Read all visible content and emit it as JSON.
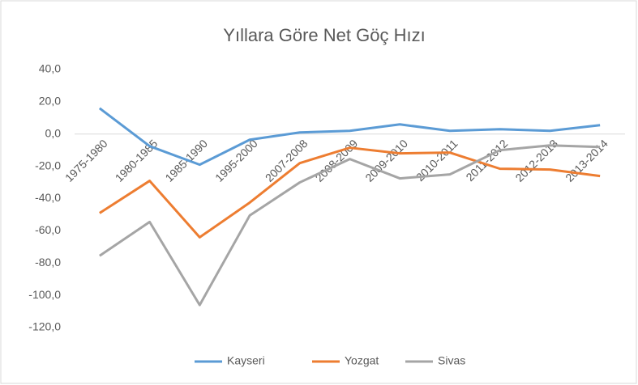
{
  "chart_data": {
    "type": "line",
    "title": "Yıllara Göre Net Göç Hızı",
    "categories": [
      "1975-1980",
      "1980-1985",
      "1985-1990",
      "1995-2000",
      "2007-2008",
      "2008-2009",
      "2009-2010",
      "2010-2011",
      "2011-2012",
      "2012-2013",
      "2013-2014"
    ],
    "series": [
      {
        "name": "Kayseri",
        "color": "#5b9bd5",
        "values": [
          16,
          -7.5,
          -19,
          -3.5,
          1,
          2,
          6,
          2,
          3,
          2,
          5.5
        ]
      },
      {
        "name": "Yozgat",
        "color": "#ed7d31",
        "values": [
          -49,
          -29,
          -64,
          -42.5,
          -18,
          -8.5,
          -12,
          -11.5,
          -21.5,
          -22,
          -26
        ]
      },
      {
        "name": "Sivas",
        "color": "#a5a5a5",
        "values": [
          -75.5,
          -54.5,
          -106,
          -50.5,
          -30,
          -15.5,
          -27.5,
          -25,
          -10,
          -7,
          -8
        ]
      }
    ],
    "ylim": [
      -120,
      40
    ],
    "yticks": [
      {
        "value": 40,
        "label": "40,0"
      },
      {
        "value": 20,
        "label": "20,0"
      },
      {
        "value": 0,
        "label": "0,0"
      },
      {
        "value": -20,
        "label": "-20,0"
      },
      {
        "value": -40,
        "label": "-40,0"
      },
      {
        "value": -60,
        "label": "-60,0"
      },
      {
        "value": -80,
        "label": "-80,0"
      },
      {
        "value": -100,
        "label": "-100,0"
      },
      {
        "value": -120,
        "label": "-120,0"
      }
    ],
    "grid": false,
    "legend": "bottom"
  }
}
